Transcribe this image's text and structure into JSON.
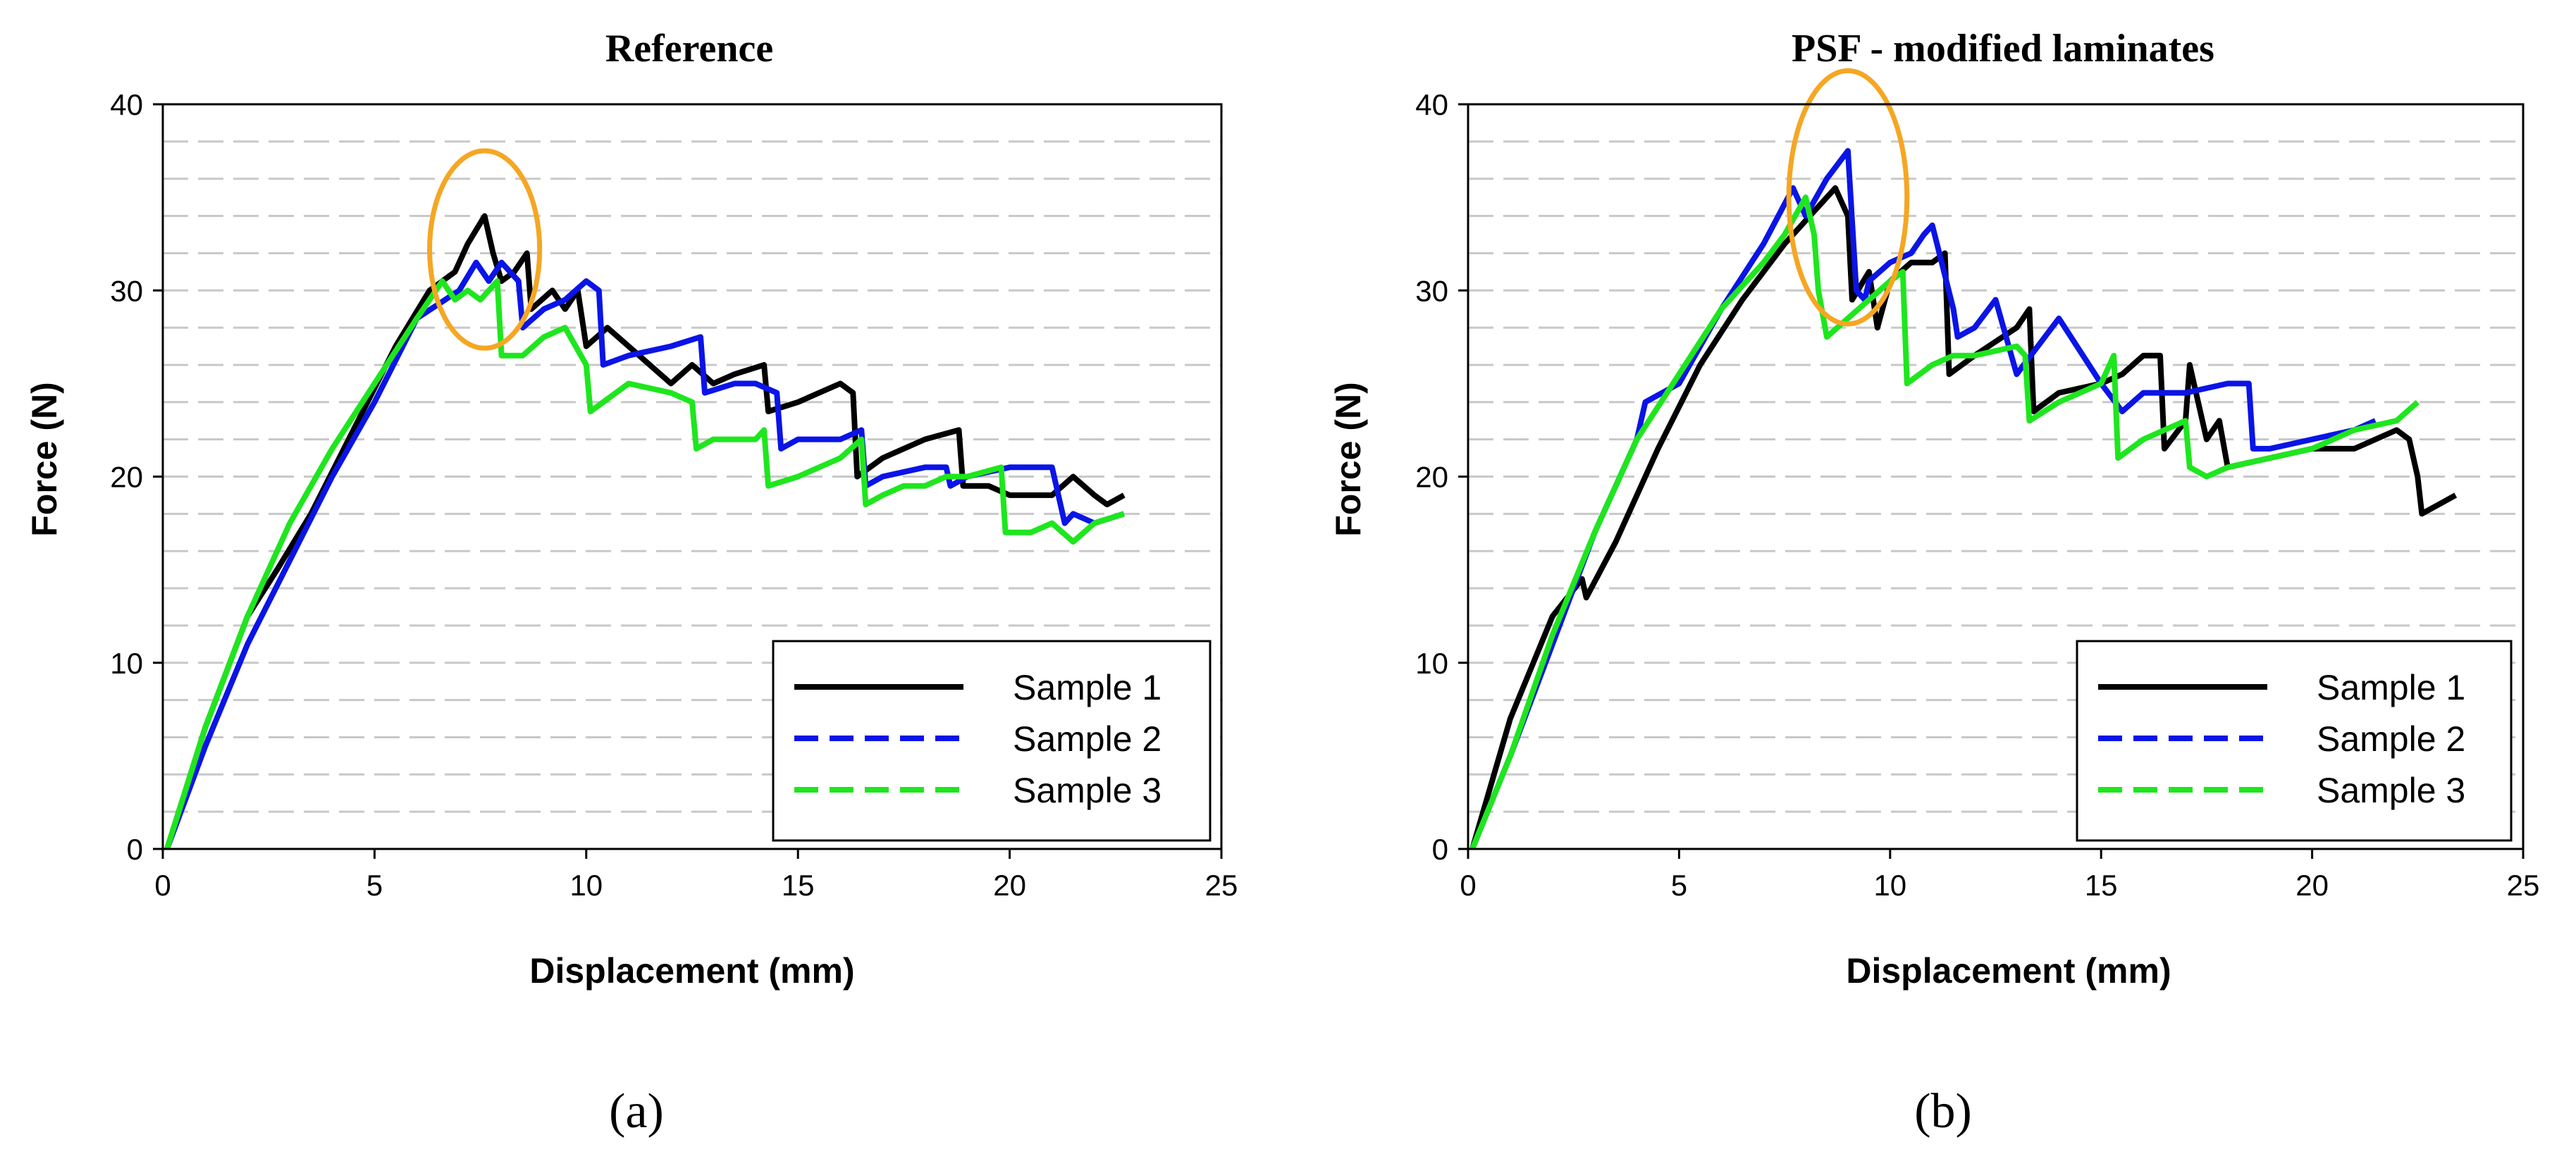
{
  "chart_data": [
    {
      "type": "line",
      "panel_label": "(a)",
      "title": "Reference",
      "xlabel": "Displacement (mm)",
      "ylabel": "Force (N)",
      "xlim": [
        0,
        25
      ],
      "ylim": [
        0,
        40
      ],
      "xticks": [
        0,
        5,
        10,
        15,
        20,
        25
      ],
      "yticks": [
        0,
        10,
        20,
        30,
        40
      ],
      "minor_grid_y_step": 2,
      "legend_position": "bottom-right",
      "highlight": {
        "shape": "ellipse",
        "color": "#F5A623",
        "cx": 7.6,
        "cy": 32.2,
        "rx": 1.3,
        "ry": 5.3
      },
      "series": [
        {
          "name": "Sample 1",
          "color": "#000000",
          "dash": "solid",
          "x": [
            0.1,
            1.0,
            2.0,
            2.7,
            3.5,
            4.5,
            5.5,
            6.3,
            6.9,
            7.2,
            7.6,
            7.8,
            8.0,
            8.3,
            8.6,
            8.7,
            9.2,
            9.5,
            9.8,
            10.0,
            10.5,
            11.0,
            12.0,
            12.5,
            13.0,
            13.5,
            14.2,
            14.3,
            15.0,
            16.0,
            16.3,
            16.4,
            17.0,
            18.0,
            18.8,
            18.9,
            19.5,
            20.0,
            21.0,
            21.5,
            22.0,
            22.3,
            22.7
          ],
          "y": [
            0,
            6.5,
            12.5,
            15,
            18,
            22.5,
            27,
            30,
            31,
            32.5,
            34,
            32,
            30.5,
            31,
            32,
            29,
            30,
            29,
            30,
            27,
            28,
            27,
            25,
            26,
            25,
            25.5,
            26,
            23.5,
            24,
            25,
            24.5,
            20,
            21,
            22,
            22.5,
            19.5,
            19.5,
            19,
            19,
            20,
            19,
            18.5,
            19
          ]
        },
        {
          "name": "Sample 2",
          "color": "#0A14E6",
          "dash": "dashed",
          "x": [
            0.1,
            1.0,
            2.0,
            3.0,
            4.0,
            5.0,
            6.0,
            7.0,
            7.4,
            7.7,
            8.0,
            8.4,
            8.5,
            9.0,
            9.5,
            10.0,
            10.3,
            10.4,
            11.0,
            12.0,
            12.7,
            12.8,
            13.5,
            14.0,
            14.5,
            14.6,
            15.0,
            16.0,
            16.5,
            16.6,
            17.0,
            18.0,
            18.5,
            18.6,
            19.0,
            20.0,
            21.0,
            21.3,
            21.5,
            22.0,
            22.7
          ],
          "y": [
            0,
            5.5,
            11,
            15.5,
            20,
            24,
            28.5,
            30,
            31.5,
            30.5,
            31.5,
            30.5,
            28,
            29,
            29.5,
            30.5,
            30,
            26,
            26.5,
            27,
            27.5,
            24.5,
            25,
            25,
            24.5,
            21.5,
            22,
            22,
            22.5,
            19.5,
            20,
            20.5,
            20.5,
            19.5,
            20,
            20.5,
            20.5,
            17.5,
            18,
            17.5,
            18
          ]
        },
        {
          "name": "Sample 3",
          "color": "#1EE61E",
          "dash": "dashed",
          "x": [
            0.1,
            1.0,
            2.0,
            3.0,
            4.0,
            5.0,
            6.0,
            6.6,
            6.9,
            7.2,
            7.5,
            7.9,
            8.0,
            8.5,
            9.0,
            9.5,
            10.0,
            10.1,
            11.0,
            12.0,
            12.5,
            12.6,
            13.0,
            14.0,
            14.2,
            14.3,
            15.0,
            16.0,
            16.5,
            16.6,
            17.0,
            17.5,
            18.0,
            18.5,
            19.0,
            19.8,
            19.9,
            20.5,
            21.0,
            21.5,
            22.0,
            22.7
          ],
          "y": [
            0,
            6.5,
            12.5,
            17.5,
            21.5,
            25,
            28.5,
            30.5,
            29.5,
            30,
            29.5,
            30.5,
            26.5,
            26.5,
            27.5,
            28,
            26,
            23.5,
            25,
            24.5,
            24,
            21.5,
            22,
            22,
            22.5,
            19.5,
            20,
            21,
            22,
            18.5,
            19,
            19.5,
            19.5,
            20,
            20,
            20.5,
            17,
            17,
            17.5,
            16.5,
            17.5,
            18
          ]
        }
      ]
    },
    {
      "type": "line",
      "panel_label": "(b)",
      "title": "PSF - modified laminates",
      "xlabel": "Displacement (mm)",
      "ylabel": "Force (N)",
      "xlim": [
        0,
        25
      ],
      "ylim": [
        0,
        40
      ],
      "xticks": [
        0,
        5,
        10,
        15,
        20,
        25
      ],
      "yticks": [
        0,
        10,
        20,
        30,
        40
      ],
      "minor_grid_y_step": 2,
      "legend_position": "bottom-right",
      "highlight": {
        "shape": "ellipse",
        "color": "#F5A623",
        "cx": 9.0,
        "cy": 35.0,
        "rx": 1.4,
        "ry": 6.8
      },
      "series": [
        {
          "name": "Sample 1",
          "color": "#000000",
          "dash": "solid",
          "x": [
            0.1,
            1.0,
            2.0,
            2.7,
            2.8,
            3.5,
            4.5,
            5.5,
            6.5,
            7.5,
            8.3,
            8.7,
            9.0,
            9.1,
            9.5,
            9.7,
            10.0,
            10.5,
            11.0,
            11.3,
            11.4,
            12.0,
            13.0,
            13.3,
            13.4,
            14.0,
            15.0,
            15.5,
            16.0,
            16.4,
            16.5,
            17.0,
            17.1,
            17.5,
            17.8,
            18.0,
            19.0,
            20.0,
            21.0,
            22.0,
            22.3,
            22.5,
            22.6,
            23.0,
            23.4
          ],
          "y": [
            0,
            7,
            12.5,
            14.5,
            13.5,
            16.5,
            21.5,
            26,
            29.5,
            32.5,
            34.5,
            35.5,
            34,
            29.5,
            31,
            28,
            30.5,
            31.5,
            31.5,
            32,
            25.5,
            26.5,
            28,
            29,
            23.5,
            24.5,
            25,
            25.5,
            26.5,
            26.5,
            21.5,
            23,
            26,
            22,
            23,
            20.5,
            21,
            21.5,
            21.5,
            22.5,
            22,
            20,
            18,
            18.5,
            19
          ]
        },
        {
          "name": "Sample 2",
          "color": "#0A14E6",
          "dash": "dashed",
          "x": [
            0.1,
            1.0,
            2.0,
            3.0,
            4.0,
            4.2,
            5.0,
            6.0,
            7.0,
            7.7,
            8.0,
            8.5,
            9.0,
            9.2,
            9.4,
            9.5,
            10.0,
            10.5,
            10.8,
            11.0,
            11.5,
            11.6,
            12.0,
            12.5,
            13.0,
            14.0,
            15.0,
            15.5,
            16.0,
            17.0,
            18.0,
            18.5,
            18.6,
            19.0,
            20.0,
            21.0,
            21.5
          ],
          "y": [
            0,
            5,
            11,
            17,
            22,
            24,
            25,
            29,
            32.5,
            35.5,
            34,
            36,
            37.5,
            30,
            29.5,
            30.5,
            31.5,
            32,
            33,
            33.5,
            29,
            27.5,
            28,
            29.5,
            25.5,
            28.5,
            25,
            23.5,
            24.5,
            24.5,
            25,
            25,
            21.5,
            21.5,
            22,
            22.5,
            23
          ]
        },
        {
          "name": "Sample 3",
          "color": "#1EE61E",
          "dash": "dashed",
          "x": [
            0.1,
            1.0,
            2.0,
            3.0,
            4.0,
            5.0,
            6.0,
            7.0,
            7.5,
            8.0,
            8.2,
            8.3,
            8.5,
            9.0,
            9.5,
            10.0,
            10.3,
            10.4,
            11.0,
            11.5,
            12.0,
            13.0,
            13.2,
            13.3,
            14.0,
            15.0,
            15.3,
            15.4,
            16.0,
            17.0,
            17.1,
            17.5,
            18.0,
            19.0,
            20.0,
            21.0,
            22.0,
            22.5
          ],
          "y": [
            0,
            5,
            11.5,
            17,
            22,
            25.5,
            29,
            31.5,
            33,
            35,
            33,
            30,
            27.5,
            28.5,
            29.5,
            30.5,
            31,
            25,
            26,
            26.5,
            26.5,
            27,
            26.5,
            23,
            24,
            25,
            26.5,
            21,
            22,
            23,
            20.5,
            20,
            20.5,
            21,
            21.5,
            22.5,
            23,
            24
          ]
        }
      ]
    }
  ]
}
